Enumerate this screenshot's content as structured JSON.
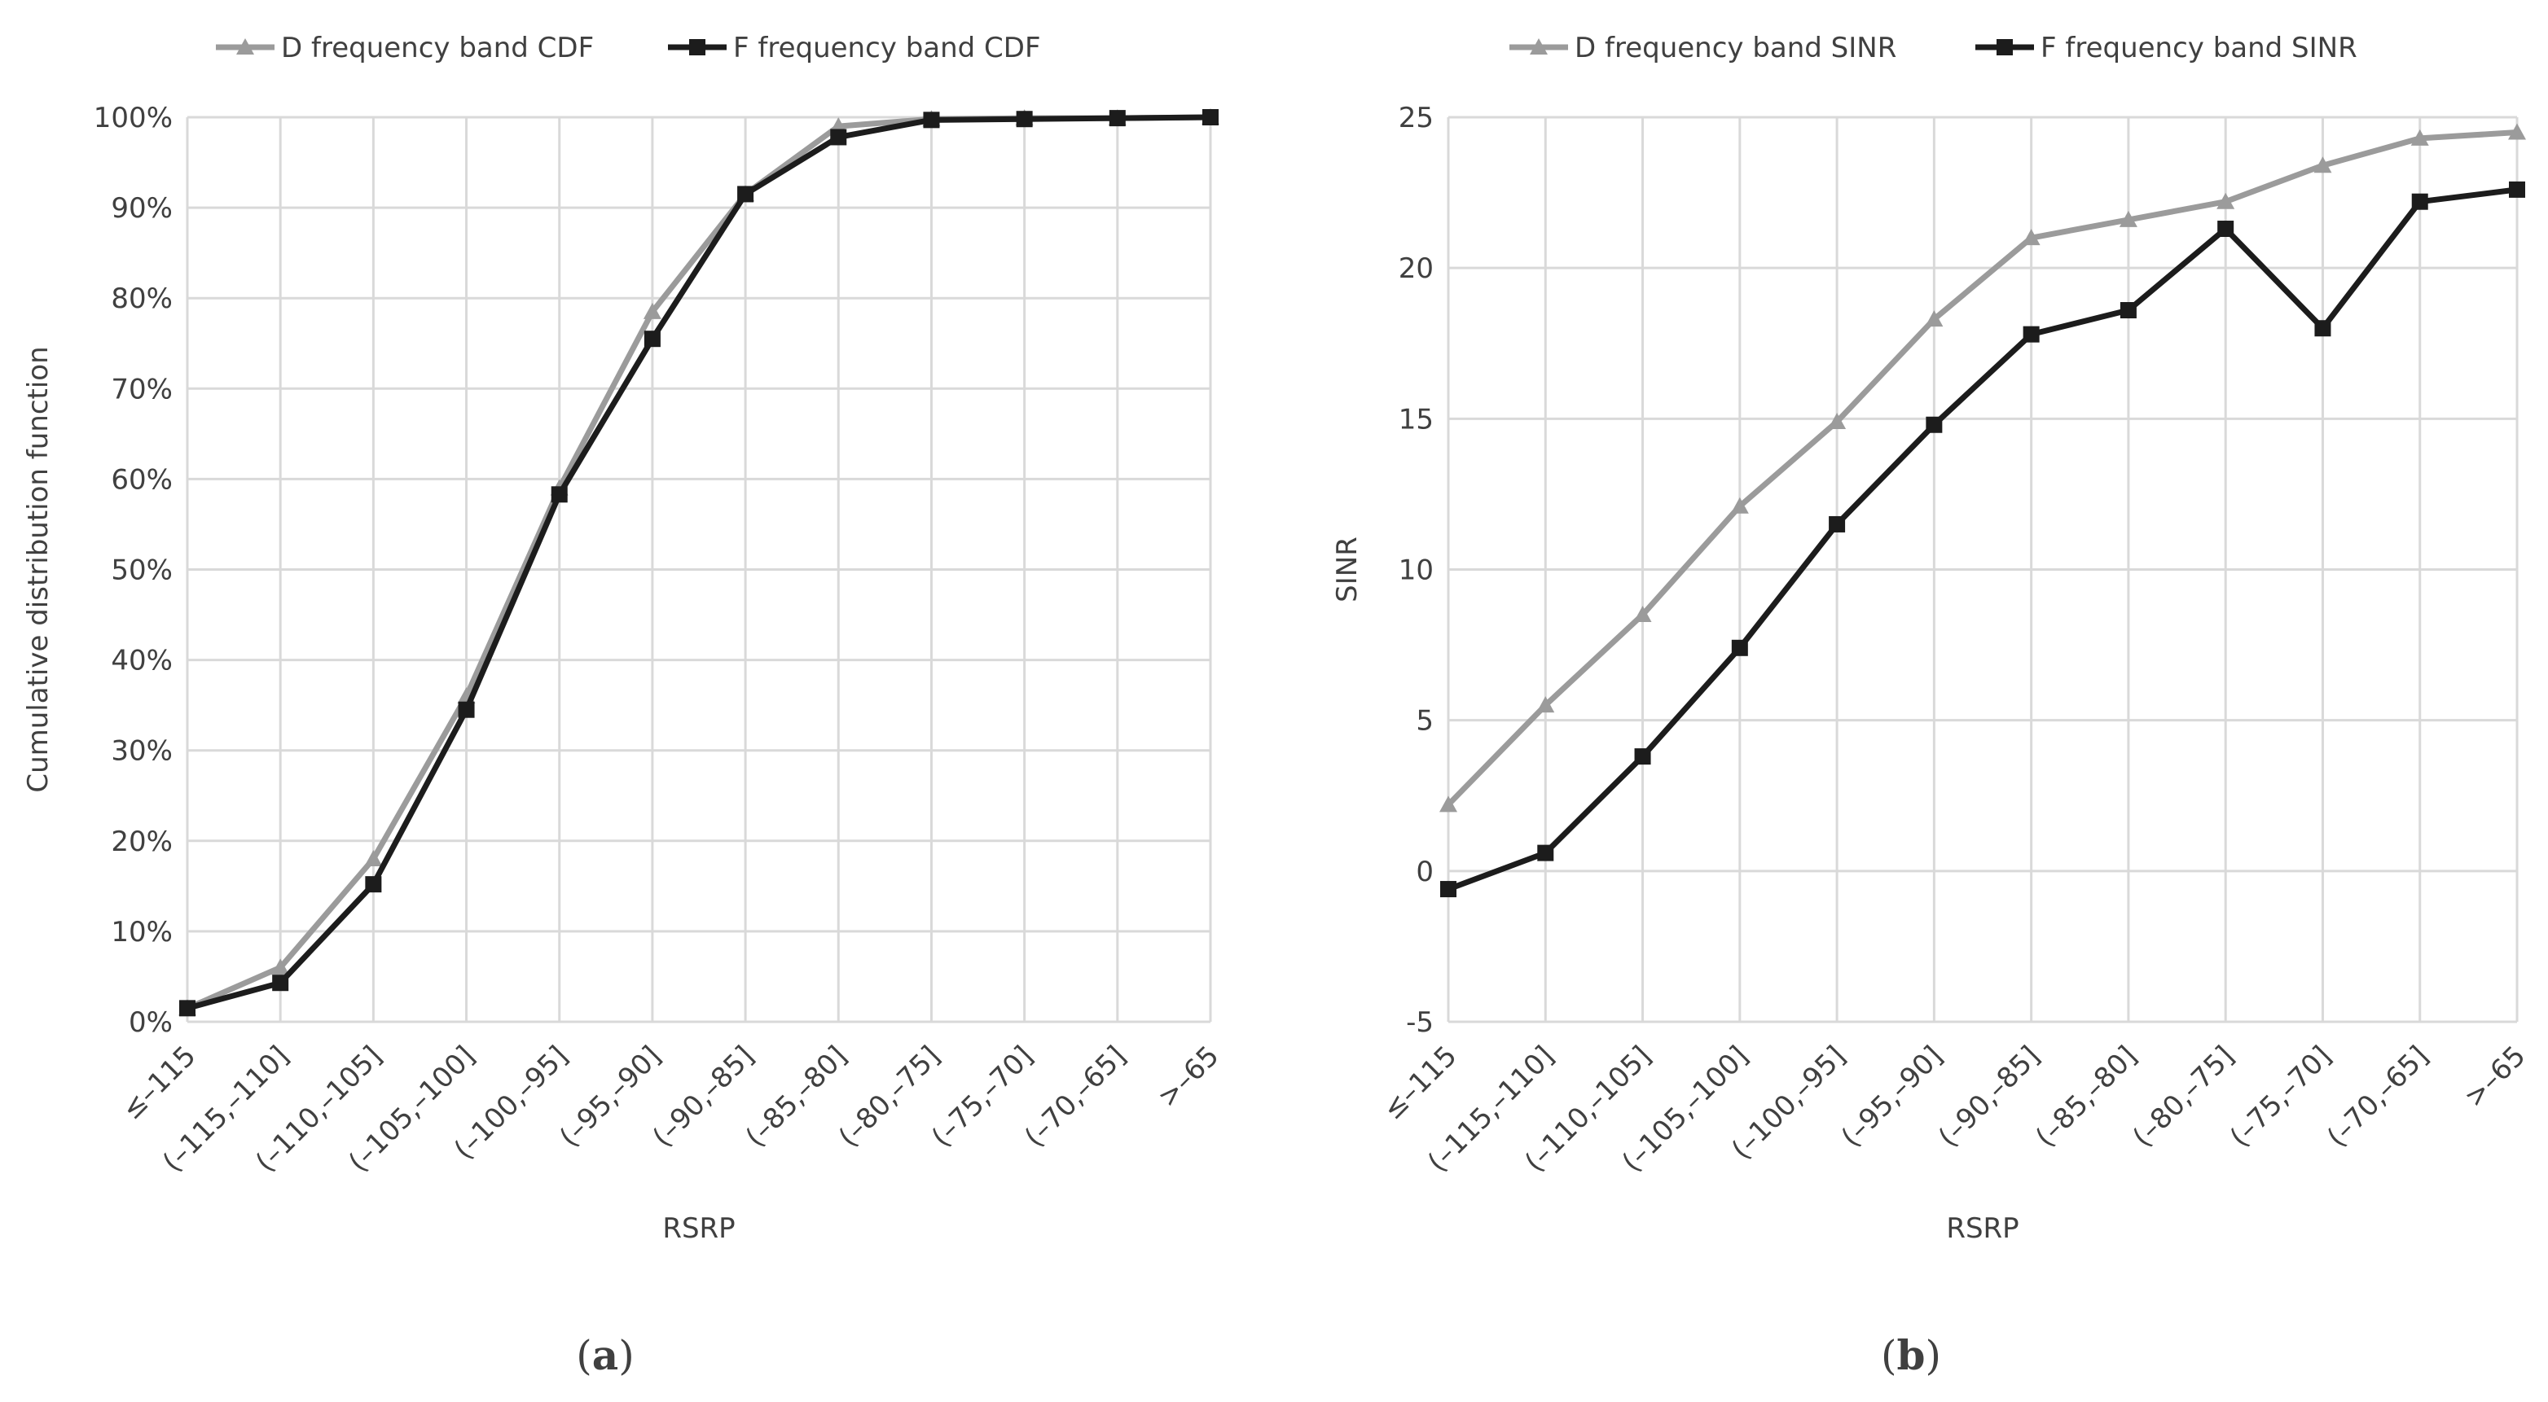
{
  "chart_data": [
    {
      "type": "line",
      "panel": "(a)",
      "title": "",
      "xlabel": "RSRP",
      "ylabel": "Cumulative distribution function",
      "categories": [
        "≤–115",
        "(–115,–110]",
        "(–110,–105]",
        "(–105,–100]",
        "(–100,–95]",
        "(–95,–90]",
        "(–90,–85]",
        "(–85,–80]",
        "(–80,–75]",
        "(–75,–70]",
        "(–70,–65]",
        ">–65"
      ],
      "ylim": [
        0,
        100
      ],
      "yticks": [
        0,
        10,
        20,
        30,
        40,
        50,
        60,
        70,
        80,
        90,
        100
      ],
      "ytick_labels": [
        "0%",
        "10%",
        "20%",
        "30%",
        "40%",
        "50%",
        "60%",
        "70%",
        "80%",
        "90%",
        "100%"
      ],
      "grid": true,
      "legend_position": "top",
      "series": [
        {
          "name": "D frequency band CDF",
          "marker": "triangle",
          "color": "#9b9b9b",
          "values": [
            1.5,
            6,
            18,
            36,
            59,
            78.5,
            91.5,
            99,
            99.8,
            99.9,
            99.9,
            100
          ]
        },
        {
          "name": "F frequency band CDF",
          "marker": "square",
          "color": "#1c1c1c",
          "values": [
            1.5,
            4.3,
            15.2,
            34.5,
            58.3,
            75.5,
            91.5,
            97.8,
            99.7,
            99.8,
            99.9,
            100
          ]
        }
      ]
    },
    {
      "type": "line",
      "panel": "(b)",
      "title": "",
      "xlabel": "RSRP",
      "ylabel": "SINR",
      "categories": [
        "≤–115",
        "(–115,–110]",
        "(–110,–105]",
        "(–105,–100]",
        "(–100,–95]",
        "(–95,–90]",
        "(–90,–85]",
        "(–85,–80]",
        "(–80,–75]",
        "(–75,–70]",
        "(–70,–65]",
        ">–65"
      ],
      "ylim": [
        -5,
        25
      ],
      "yticks": [
        -5,
        0,
        5,
        10,
        15,
        20,
        25
      ],
      "ytick_labels": [
        "-5",
        "0",
        "5",
        "10",
        "15",
        "20",
        "25"
      ],
      "grid": true,
      "legend_position": "top",
      "series": [
        {
          "name": "D frequency band SINR",
          "marker": "triangle",
          "color": "#9b9b9b",
          "values": [
            2.2,
            5.5,
            8.5,
            12.1,
            14.9,
            18.3,
            21.0,
            21.6,
            22.2,
            23.4,
            24.3,
            24.5
          ]
        },
        {
          "name": "F frequency band SINR",
          "marker": "square",
          "color": "#1c1c1c",
          "values": [
            -0.6,
            0.6,
            3.8,
            7.4,
            11.5,
            14.8,
            17.8,
            18.6,
            21.3,
            18.0,
            22.2,
            22.6
          ]
        }
      ]
    }
  ],
  "panel_labels": {
    "a": "a",
    "b": "b"
  }
}
